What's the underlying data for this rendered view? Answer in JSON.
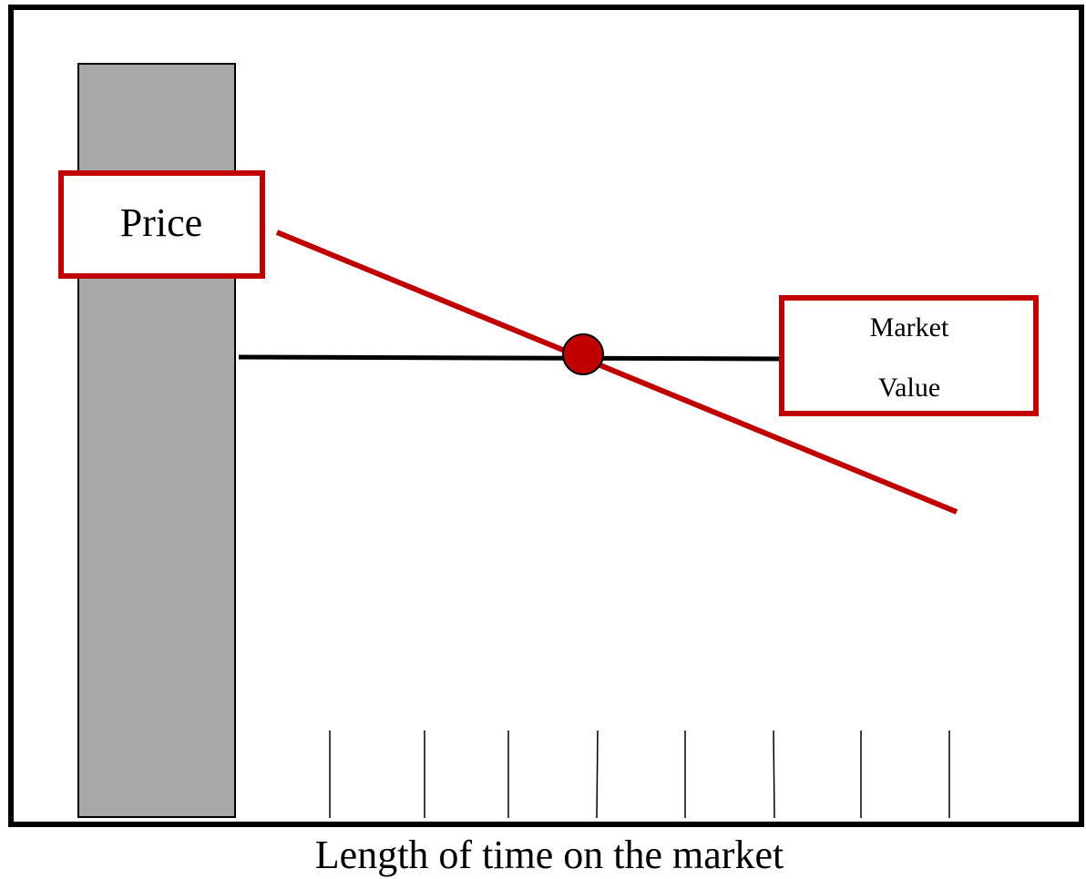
{
  "diagram": {
    "price_label": "Price",
    "market_value_label": [
      "Market",
      "Value"
    ],
    "x_axis_label": "Length of time on the market"
  }
}
